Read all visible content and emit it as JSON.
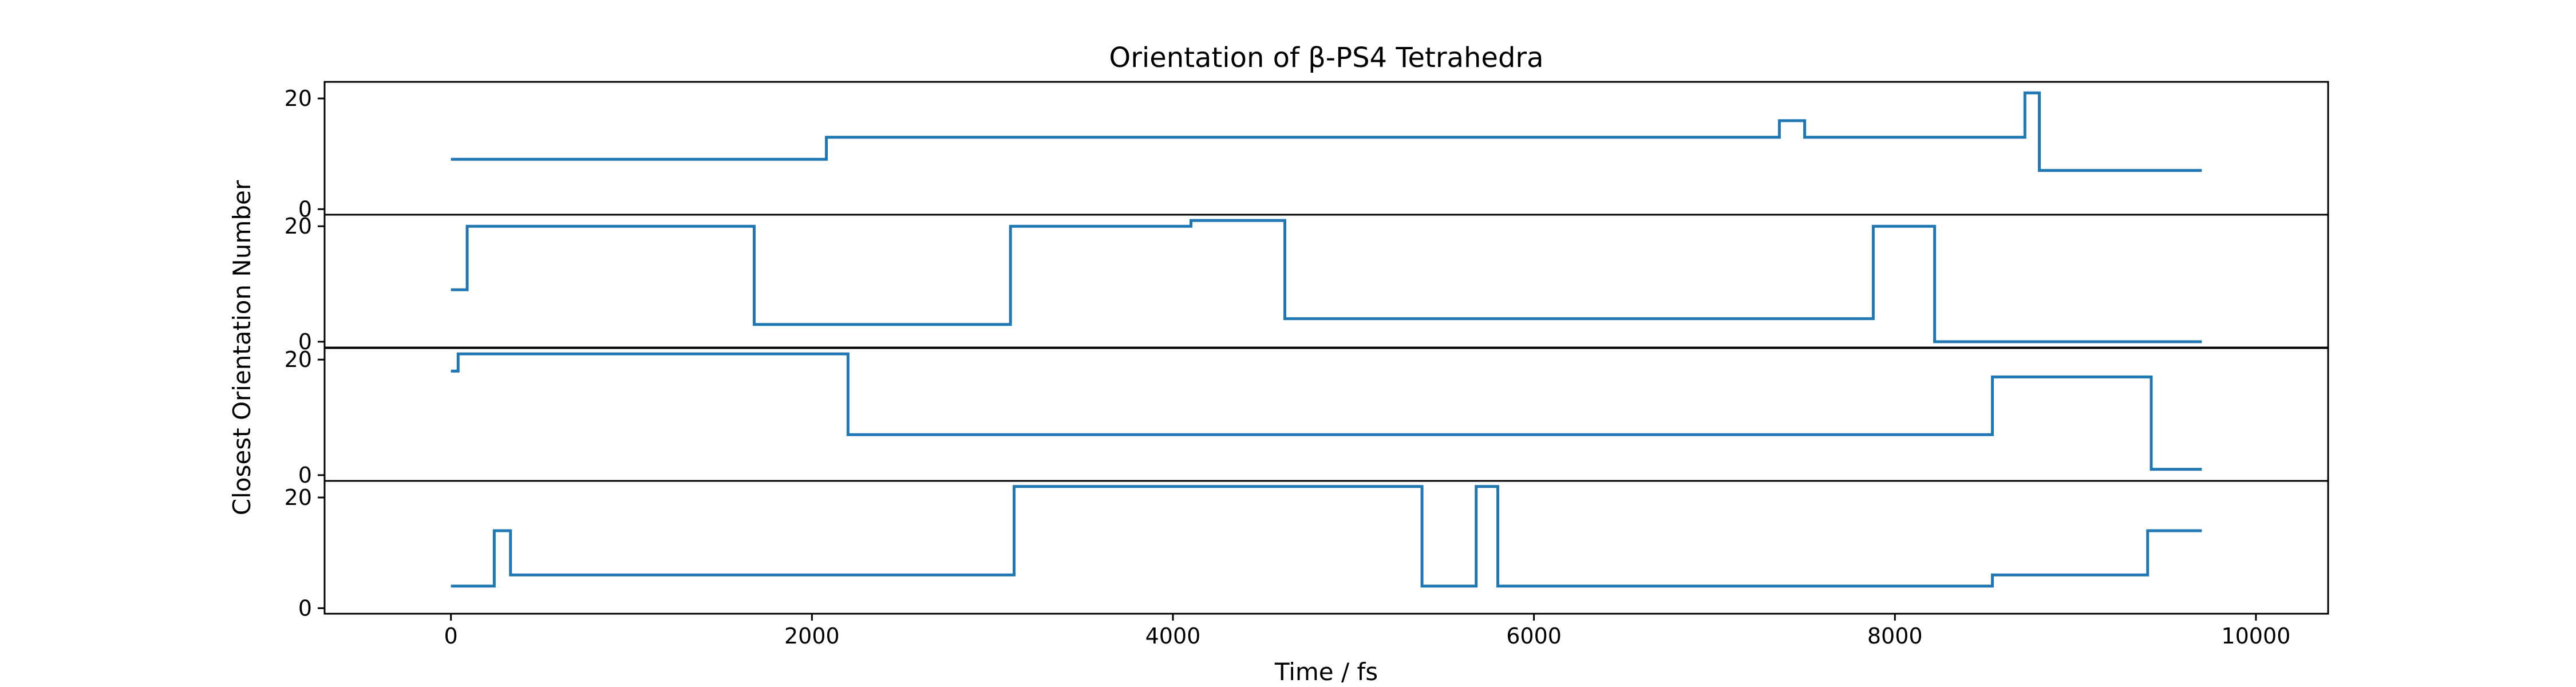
{
  "chart_data": {
    "type": "line",
    "step": "post",
    "title": "Orientation of β-PS4 Tetrahedra",
    "xlabel": "Time / fs",
    "ylabel": "Closest Orientation Number",
    "xlim": [
      -700,
      10400
    ],
    "x_ticks": [
      0,
      2000,
      4000,
      6000,
      8000,
      10000
    ],
    "y_ticks": [
      0,
      20
    ],
    "color": "#1f77b4",
    "panels": [
      {
        "ylim": [
          -1,
          23
        ],
        "points": [
          [
            0,
            9
          ],
          [
            2080,
            9
          ],
          [
            2080,
            13
          ],
          [
            7360,
            13
          ],
          [
            7360,
            16
          ],
          [
            7500,
            16
          ],
          [
            7500,
            13
          ],
          [
            8720,
            13
          ],
          [
            8720,
            21
          ],
          [
            8800,
            21
          ],
          [
            8800,
            7
          ],
          [
            9700,
            7
          ]
        ]
      },
      {
        "ylim": [
          -1,
          22
        ],
        "points": [
          [
            0,
            9
          ],
          [
            90,
            9
          ],
          [
            90,
            20
          ],
          [
            1680,
            20
          ],
          [
            1680,
            3
          ],
          [
            3100,
            3
          ],
          [
            3100,
            20
          ],
          [
            4100,
            20
          ],
          [
            4100,
            21
          ],
          [
            4620,
            21
          ],
          [
            4620,
            4
          ],
          [
            7880,
            4
          ],
          [
            7880,
            20
          ],
          [
            8220,
            20
          ],
          [
            8220,
            0
          ],
          [
            9700,
            0
          ]
        ]
      },
      {
        "ylim": [
          -1,
          22
        ],
        "points": [
          [
            0,
            18
          ],
          [
            40,
            18
          ],
          [
            40,
            21
          ],
          [
            2200,
            21
          ],
          [
            2200,
            7
          ],
          [
            8540,
            7
          ],
          [
            8540,
            17
          ],
          [
            9420,
            17
          ],
          [
            9420,
            1
          ],
          [
            9700,
            1
          ]
        ]
      },
      {
        "ylim": [
          -1,
          23
        ],
        "points": [
          [
            0,
            4
          ],
          [
            240,
            4
          ],
          [
            240,
            14
          ],
          [
            330,
            14
          ],
          [
            330,
            6
          ],
          [
            3120,
            6
          ],
          [
            3120,
            22
          ],
          [
            5380,
            22
          ],
          [
            5380,
            4
          ],
          [
            5680,
            4
          ],
          [
            5680,
            22
          ],
          [
            5800,
            22
          ],
          [
            5800,
            4
          ],
          [
            8540,
            4
          ],
          [
            8540,
            6
          ],
          [
            9400,
            6
          ],
          [
            9400,
            14
          ],
          [
            9700,
            14
          ]
        ]
      }
    ]
  }
}
